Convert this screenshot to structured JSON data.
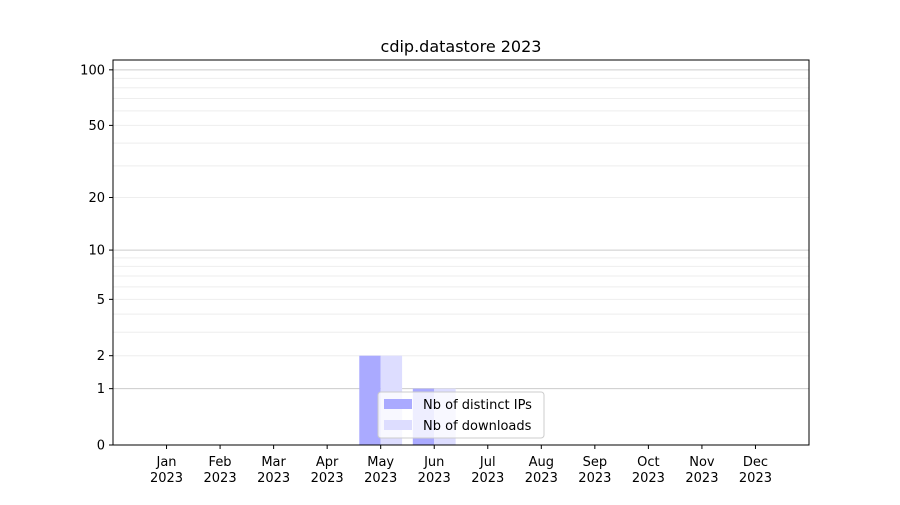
{
  "chart_data": {
    "type": "bar",
    "title": "cdip.datastore 2023",
    "xlabel": "",
    "ylabel": "",
    "categories": [
      "Jan\n2023",
      "Feb\n2023",
      "Mar\n2023",
      "Apr\n2023",
      "May\n2023",
      "Jun\n2023",
      "Jul\n2023",
      "Aug\n2023",
      "Sep\n2023",
      "Oct\n2023",
      "Nov\n2023",
      "Dec\n2023"
    ],
    "series": [
      {
        "name": "Nb of distinct IPs",
        "color": "#aaaaff",
        "values": [
          0,
          0,
          0,
          0,
          2,
          1,
          0,
          0,
          0,
          0,
          0,
          0
        ]
      },
      {
        "name": "Nb of downloads",
        "color": "#ddddff",
        "values": [
          0,
          0,
          0,
          0,
          2,
          1,
          0,
          0,
          0,
          0,
          0,
          0
        ]
      }
    ],
    "yscale": "log(1+y)",
    "ylim": [
      0,
      113
    ],
    "yticks": [
      0,
      1,
      2,
      5,
      10,
      20,
      50,
      100
    ],
    "grid": true,
    "legend": "lower-center"
  }
}
